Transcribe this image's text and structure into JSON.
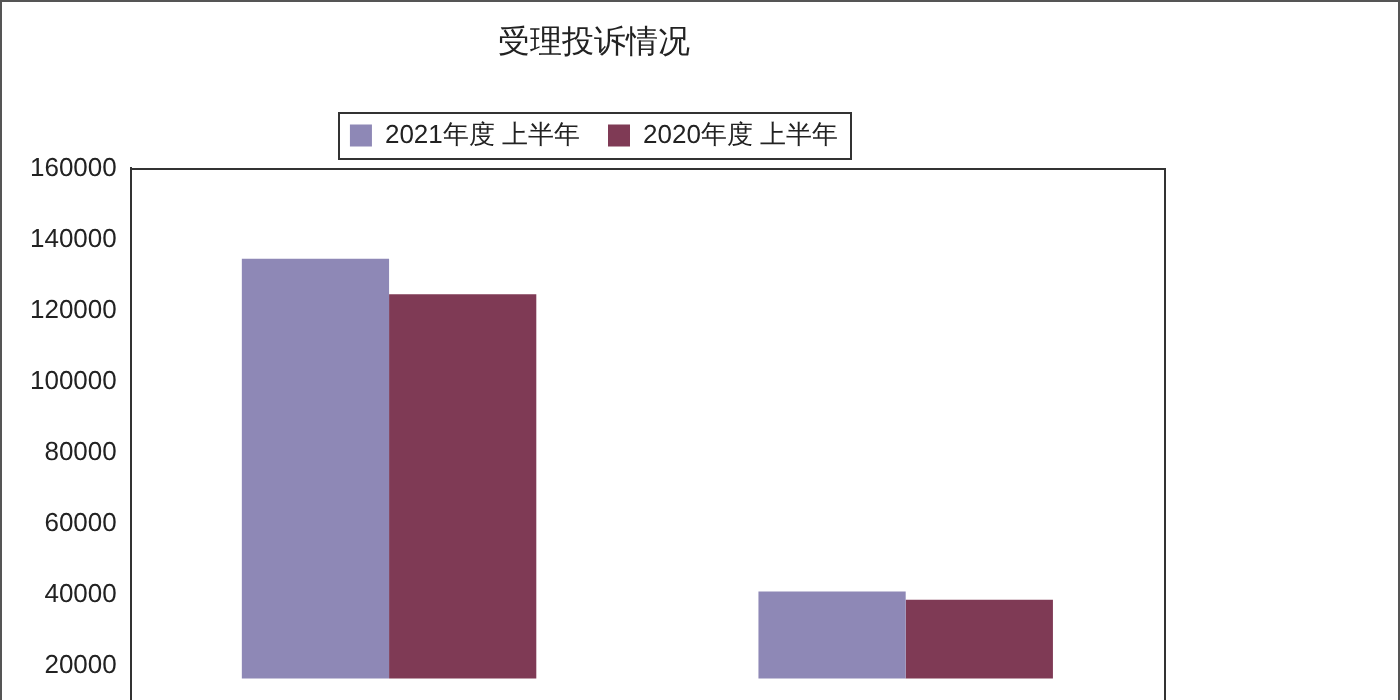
{
  "chart_data": {
    "type": "bar",
    "title": "受理投诉情况",
    "categories": [
      null,
      null
    ],
    "series": [
      {
        "name": "2021年度 上半年",
        "color": "#8e88b6",
        "values": [
          134600,
          41000
        ]
      },
      {
        "name": "2020年度 上半年",
        "color": "#7f3a55",
        "values": [
          124600,
          38700
        ]
      }
    ],
    "ylim": [
      16600,
      160000
    ],
    "yticks": [
      20000,
      40000,
      60000,
      80000,
      100000,
      120000,
      140000,
      160000
    ],
    "grid": false,
    "legend": "top"
  }
}
